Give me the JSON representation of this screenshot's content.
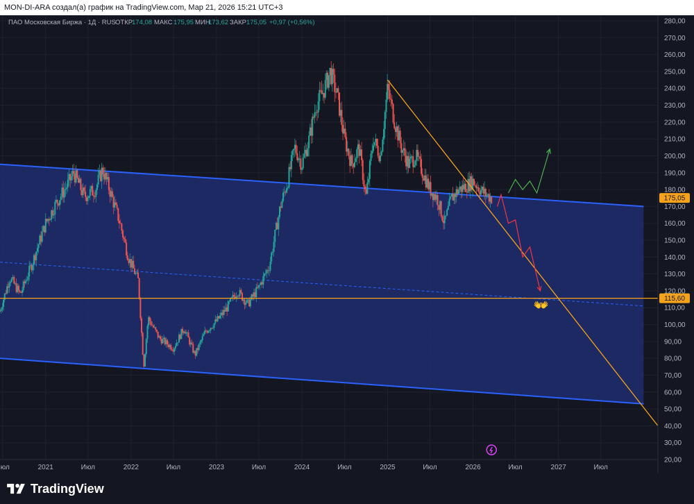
{
  "header": {
    "caption": "MON-DI-ARA создал(а) график на TradingView.com, Мар 21, 2026 15:21 UTC+3"
  },
  "legend": {
    "symbol": "ПАО Московская Биржа · 1Д · RUS",
    "open_label": "ОТКР",
    "open_value": "174,08",
    "high_label": "МАКС",
    "high_value": "175,95",
    "low_label": "МИН",
    "low_value": "173,62",
    "close_label": "ЗАКР",
    "close_value": "175,05",
    "change": "+0,97 (+0,56%)"
  },
  "footer": {
    "brand": "TradingView"
  },
  "colors": {
    "background": "#141722",
    "up": "#26a69a",
    "down": "#ef5350",
    "channel_fill": "#1e2d6e",
    "channel_line": "#2962ff",
    "trendline": "#f7a21b",
    "level_line": "#f7a21b",
    "forecast_up": "#4caf50",
    "forecast_down": "#f23645"
  },
  "chart_data": {
    "type": "candlestick",
    "ylim": [
      20,
      280
    ],
    "xlim": [
      "2020-06-20",
      "2028-03-01"
    ],
    "y_ticks": [
      "280,00",
      "270,00",
      "260,00",
      "250,00",
      "240,00",
      "230,00",
      "220,00",
      "210,00",
      "200,00",
      "190,00",
      "180,00",
      "170,00",
      "160,00",
      "150,00",
      "140,00",
      "130,00",
      "120,00",
      "110,00",
      "100,00",
      "90,00",
      "80,00",
      "70,00",
      "60,00",
      "50,00",
      "40,00",
      "30,00",
      "20,00"
    ],
    "x_ticks": [
      {
        "date": "2020-07-01",
        "label": "Июл"
      },
      {
        "date": "2021-01-01",
        "label": "2021"
      },
      {
        "date": "2021-07-01",
        "label": "Июл"
      },
      {
        "date": "2022-01-01",
        "label": "2022"
      },
      {
        "date": "2022-07-01",
        "label": "Июл"
      },
      {
        "date": "2023-01-01",
        "label": "2023"
      },
      {
        "date": "2023-07-01",
        "label": "Июл"
      },
      {
        "date": "2024-01-01",
        "label": "2024"
      },
      {
        "date": "2024-07-01",
        "label": "Июл"
      },
      {
        "date": "2025-01-01",
        "label": "2025"
      },
      {
        "date": "2025-07-01",
        "label": "Июл"
      },
      {
        "date": "2026-01-01",
        "label": "2026"
      },
      {
        "date": "2026-07-01",
        "label": "Июл"
      },
      {
        "date": "2027-01-01",
        "label": "2027"
      },
      {
        "date": "2027-07-01",
        "label": "Июл"
      }
    ],
    "price_path": [
      [
        "2020-06-20",
        108
      ],
      [
        "2020-08-01",
        128
      ],
      [
        "2020-09-15",
        118
      ],
      [
        "2020-11-01",
        135
      ],
      [
        "2021-01-01",
        160
      ],
      [
        "2021-02-15",
        172
      ],
      [
        "2021-04-01",
        182
      ],
      [
        "2021-05-01",
        190
      ],
      [
        "2021-06-15",
        176
      ],
      [
        "2021-08-01",
        180
      ],
      [
        "2021-09-01",
        192
      ],
      [
        "2021-10-01",
        180
      ],
      [
        "2021-11-15",
        160
      ],
      [
        "2021-12-20",
        140
      ],
      [
        "2022-02-01",
        126
      ],
      [
        "2022-02-24",
        75
      ],
      [
        "2022-03-15",
        104
      ],
      [
        "2022-05-01",
        92
      ],
      [
        "2022-07-01",
        86
      ],
      [
        "2022-08-15",
        98
      ],
      [
        "2022-10-01",
        82
      ],
      [
        "2022-11-15",
        96
      ],
      [
        "2023-01-01",
        102
      ],
      [
        "2023-02-15",
        110
      ],
      [
        "2023-04-01",
        120
      ],
      [
        "2023-05-15",
        112
      ],
      [
        "2023-07-01",
        122
      ],
      [
        "2023-08-15",
        135
      ],
      [
        "2023-10-01",
        170
      ],
      [
        "2023-11-01",
        185
      ],
      [
        "2023-12-01",
        205
      ],
      [
        "2024-01-01",
        195
      ],
      [
        "2024-02-01",
        210
      ],
      [
        "2024-03-01",
        230
      ],
      [
        "2024-04-01",
        238
      ],
      [
        "2024-05-01",
        250
      ],
      [
        "2024-06-01",
        235
      ],
      [
        "2024-07-01",
        210
      ],
      [
        "2024-08-01",
        195
      ],
      [
        "2024-09-01",
        205
      ],
      [
        "2024-10-01",
        175
      ],
      [
        "2024-11-01",
        210
      ],
      [
        "2024-12-01",
        200
      ],
      [
        "2025-01-01",
        240
      ],
      [
        "2025-02-01",
        220
      ],
      [
        "2025-03-01",
        205
      ],
      [
        "2025-04-01",
        195
      ],
      [
        "2025-05-01",
        200
      ],
      [
        "2025-06-01",
        190
      ],
      [
        "2025-07-01",
        180
      ],
      [
        "2025-08-01",
        175
      ],
      [
        "2025-09-01",
        160
      ],
      [
        "2025-10-01",
        175
      ],
      [
        "2025-11-01",
        180
      ],
      [
        "2025-12-01",
        182
      ],
      [
        "2026-01-01",
        185
      ],
      [
        "2026-02-15",
        178
      ],
      [
        "2026-03-21",
        175
      ]
    ],
    "channel": {
      "upper": [
        [
          "2020-06-20",
          195
        ],
        [
          "2027-12-31",
          170
        ]
      ],
      "lower": [
        [
          "2020-06-20",
          80
        ],
        [
          "2027-12-31",
          53
        ]
      ],
      "median": [
        [
          "2020-06-20",
          137
        ],
        [
          "2027-12-31",
          111
        ]
      ]
    },
    "trendline": [
      [
        "2025-01-01",
        245
      ],
      [
        "2028-03-01",
        40
      ]
    ],
    "level": 115.6,
    "price_labels": [
      {
        "value": 175.05,
        "text": "175,05",
        "color": "#f7a21b"
      },
      {
        "value": 115.6,
        "text": "115,60",
        "color": "#f7a21b"
      }
    ],
    "forecast_up": [
      [
        "2026-06-01",
        178
      ],
      [
        "2026-07-01",
        186
      ],
      [
        "2026-08-01",
        180
      ],
      [
        "2026-09-01",
        185
      ],
      [
        "2026-10-01",
        178
      ],
      [
        "2026-11-25",
        204
      ]
    ],
    "forecast_down": [
      [
        "2026-04-15",
        170
      ],
      [
        "2026-05-01",
        177
      ],
      [
        "2026-06-01",
        160
      ],
      [
        "2026-07-01",
        162
      ],
      [
        "2026-08-01",
        140
      ],
      [
        "2026-09-01",
        146
      ],
      [
        "2026-10-15",
        120
      ]
    ],
    "emoji": "👐"
  }
}
